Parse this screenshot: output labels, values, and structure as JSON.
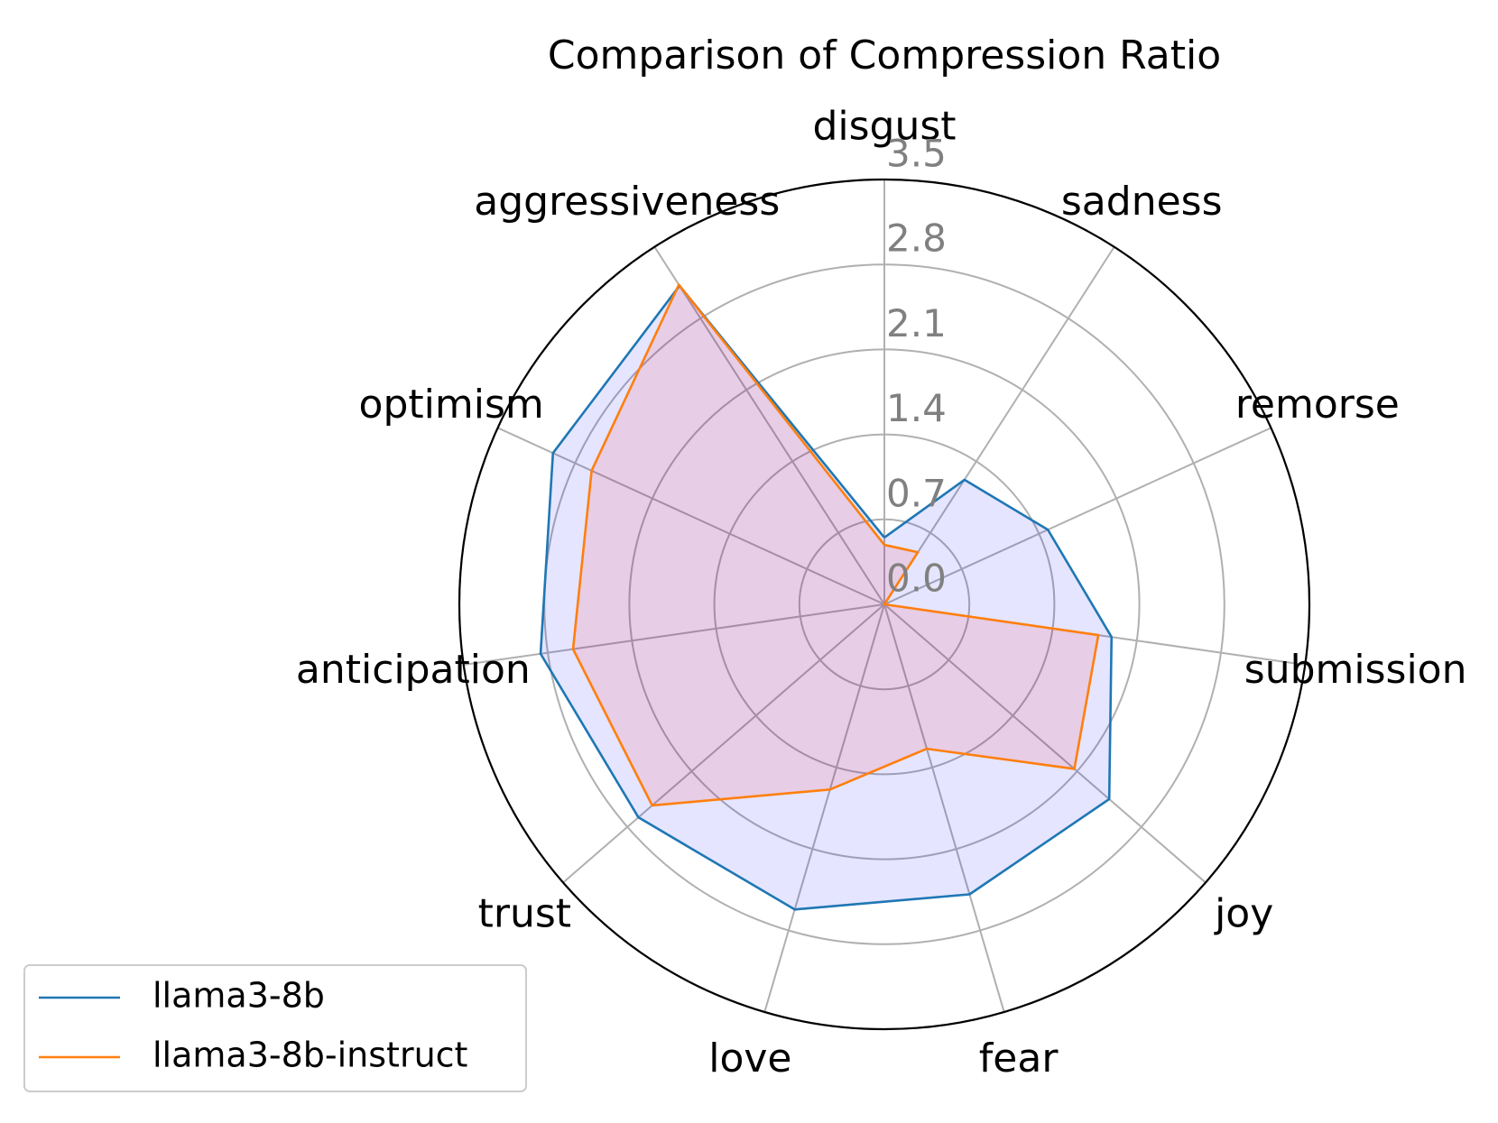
{
  "chart_data": {
    "type": "radar",
    "title": "Comparison of Compression Ratio",
    "categories": [
      "disgust",
      "sadness",
      "remorse",
      "submission",
      "joy",
      "fear",
      "love",
      "trust",
      "anticipation",
      "optimism",
      "aggressiveness"
    ],
    "series": [
      {
        "name": "llama3-8b",
        "color": "#1f77b4",
        "fill": "#0000ff",
        "fill_opacity": 0.1,
        "values": [
          0.55,
          1.22,
          1.48,
          1.89,
          2.45,
          2.49,
          2.62,
          2.68,
          2.86,
          3.0,
          3.12
        ]
      },
      {
        "name": "llama3-8b-instruct",
        "color": "#ff7f0e",
        "fill": "#ff0000",
        "fill_opacity": 0.1,
        "values": [
          0.49,
          0.51,
          0.0,
          1.78,
          2.07,
          1.24,
          1.59,
          2.53,
          2.59,
          2.65,
          3.13
        ]
      }
    ],
    "ylim": [
      0,
      3.5
    ],
    "yticks": [
      {
        "value": 0,
        "label": "0.0"
      },
      0.7,
      1.4,
      2.1,
      2.8,
      3.5
    ],
    "grid": true,
    "legend": "lower left"
  }
}
